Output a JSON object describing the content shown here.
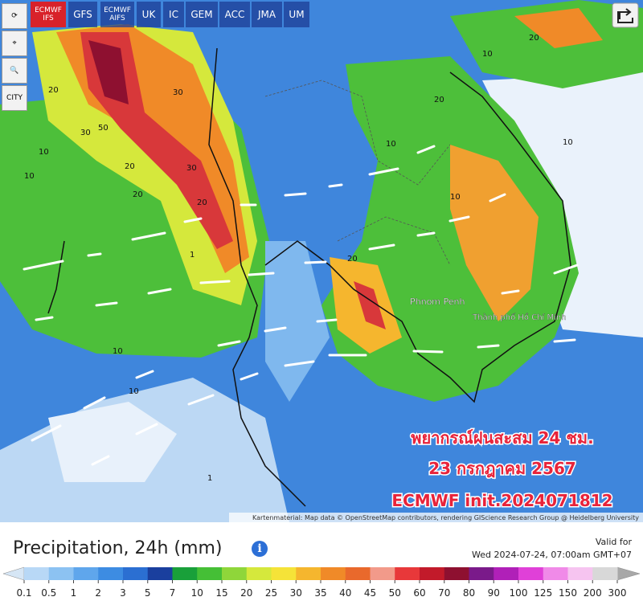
{
  "toolbar": {
    "models": [
      "ECMWF IFS",
      "GFS",
      "ECMWF AIFS",
      "UK",
      "IC",
      "GEM",
      "ACC",
      "JMA",
      "UM"
    ],
    "active": 0
  },
  "side_buttons": {
    "city": "CITY"
  },
  "map": {
    "places": [
      "Phnom Penh",
      "Thành phố Hồ Chí Minh"
    ],
    "contour_labels": [
      "20",
      "30",
      "50",
      "30",
      "20",
      "10",
      "10",
      "20",
      "10",
      "30",
      "20",
      "10",
      "20",
      "10",
      "10",
      "1",
      "1",
      "10",
      "20",
      "20",
      "10"
    ],
    "overlay": [
      "พยากรณ์ฝนสะสม 24 ชม.",
      "23 กรกฎาคม 2567",
      "ECMWF init.2024071812"
    ],
    "attribution": "Kartenmaterial: Map data © OpenStreetMap contributors, rendering GIScience Research Group @ Heidelberg University"
  },
  "legend": {
    "title": "Precipitation, 24h (mm)",
    "valid_label": "Valid for",
    "valid_time": "Wed 2024-07-24, 07:00am GMT+07",
    "ticks": [
      0.1,
      0.5,
      1,
      2,
      3,
      5,
      7,
      10,
      15,
      20,
      25,
      30,
      35,
      40,
      45,
      50,
      60,
      70,
      80,
      90,
      100,
      125,
      150,
      200,
      300
    ],
    "under_color": "#d6e6f5",
    "over_color": "#a8a8a8",
    "colors": [
      "#b8d8f6",
      "#8cc2f2",
      "#5fa6ec",
      "#3d8ce2",
      "#2b6fd2",
      "#1a3f9e",
      "#19a03a",
      "#45bf36",
      "#8fd63a",
      "#d5e83c",
      "#f5e338",
      "#f5b62e",
      "#f08a28",
      "#e9692c",
      "#f29a8a",
      "#e8383a",
      "#c21a2a",
      "#8e1030",
      "#7a1a8a",
      "#b020b8",
      "#e040d8",
      "#f08ae8",
      "#f6c4f0",
      "#d8d8d8"
    ]
  }
}
